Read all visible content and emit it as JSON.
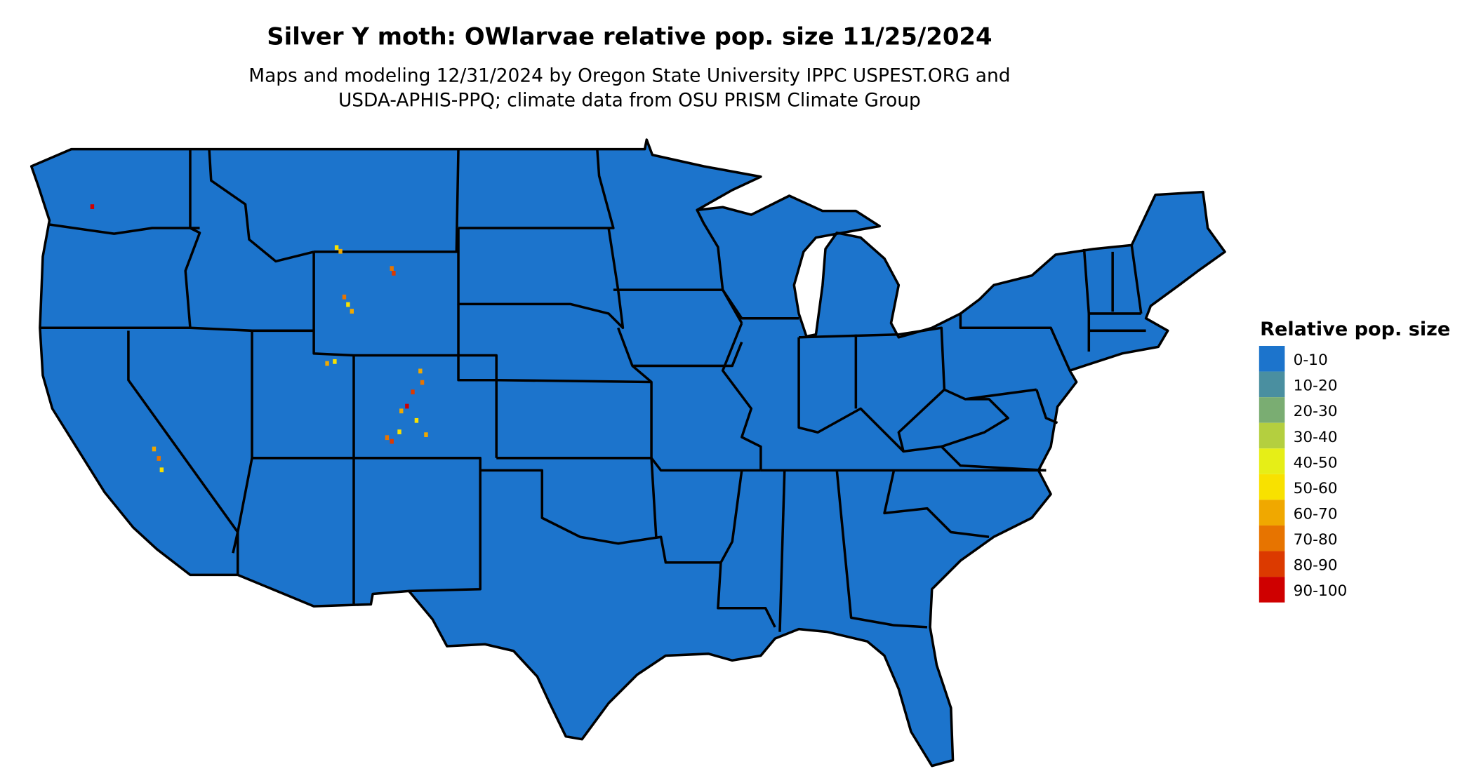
{
  "header": {
    "title": "Silver Y moth: OWlarvae relative pop. size 11/25/2024",
    "subtitle": [
      "Maps and modeling 12/31/2024 by Oregon State University IPPC USPEST.ORG and",
      "USDA-APHIS-PPQ; climate data from OSU PRISM Climate Group"
    ]
  },
  "legend": {
    "title": "Relative pop. size",
    "items": [
      {
        "label": "0-10",
        "color": "#1c74cc"
      },
      {
        "label": "10-20",
        "color": "#4a8fa0"
      },
      {
        "label": "20-30",
        "color": "#7aad72"
      },
      {
        "label": "30-40",
        "color": "#b4cf3f"
      },
      {
        "label": "40-50",
        "color": "#e6ee17"
      },
      {
        "label": "50-60",
        "color": "#f8e100"
      },
      {
        "label": "60-70",
        "color": "#f0a800"
      },
      {
        "label": "70-80",
        "color": "#e77400"
      },
      {
        "label": "80-90",
        "color": "#dc3a00"
      },
      {
        "label": "90-100",
        "color": "#cf0000"
      }
    ]
  }
}
